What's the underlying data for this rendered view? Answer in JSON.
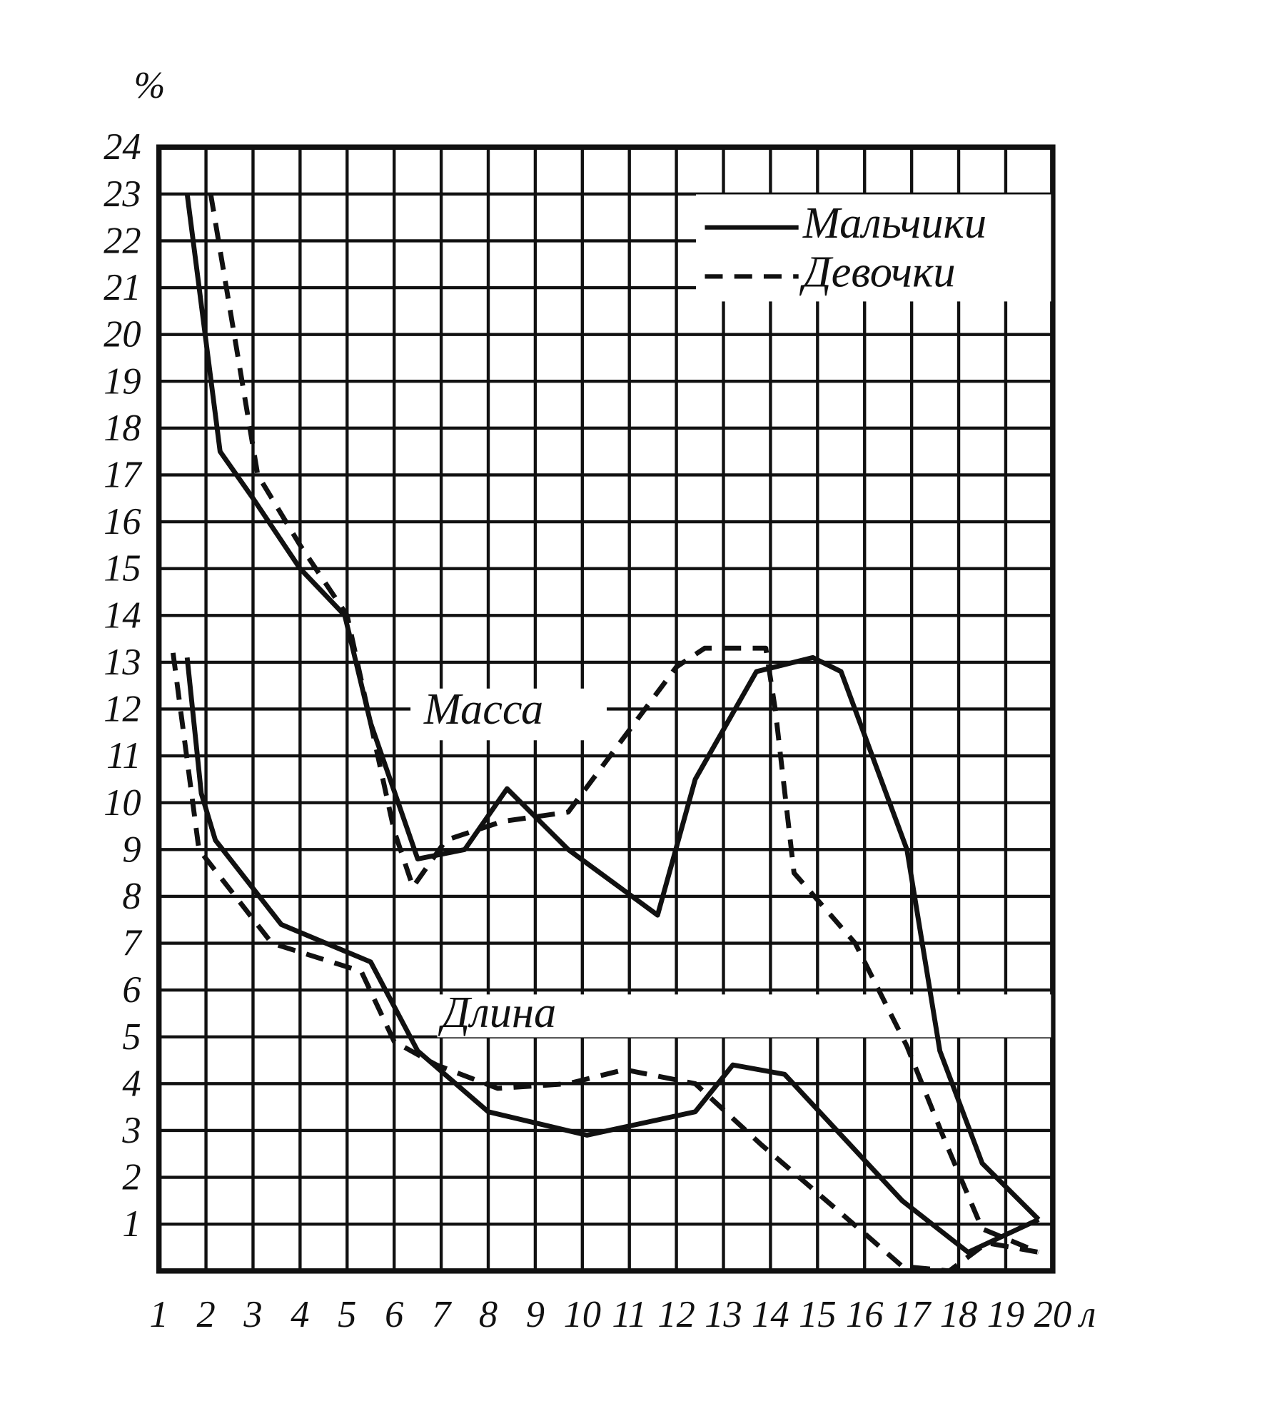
{
  "chart_data": {
    "type": "line",
    "y_unit": "%",
    "x_unit": "л",
    "xlim": [
      1,
      20
    ],
    "xticks": [
      1,
      2,
      3,
      4,
      5,
      6,
      7,
      8,
      9,
      10,
      11,
      12,
      13,
      14,
      15,
      16,
      17,
      18,
      19,
      20
    ],
    "ylim": [
      0,
      24
    ],
    "yticks": [
      1,
      2,
      3,
      4,
      5,
      6,
      7,
      8,
      9,
      10,
      11,
      12,
      13,
      14,
      15,
      16,
      17,
      18,
      19,
      20,
      21,
      22,
      23,
      24
    ],
    "grid": true,
    "legend_position": "upper right",
    "color": "#111111",
    "legend": [
      {
        "name": "Мальчики",
        "dash": "solid"
      },
      {
        "name": "Девочки",
        "dash": "dashed"
      }
    ],
    "groups": [
      {
        "label": "Масса",
        "series": [
          {
            "dash": "solid",
            "x": [
              1.6,
              2.3,
              3.0,
              4.0,
              4.95,
              5.5,
              6.5,
              7.5,
              8.4,
              9.7,
              11.6,
              12.4,
              13.7,
              14.9,
              15.5,
              16.9,
              17.6,
              18.5,
              19.7
            ],
            "values": [
              23,
              17.5,
              16.5,
              15,
              14,
              11.7,
              8.8,
              9,
              10.3,
              9,
              7.6,
              10.5,
              12.8,
              13.1,
              12.8,
              9,
              4.7,
              2.3,
              1.1
            ]
          },
          {
            "dash": "dashed",
            "x": [
              2.1,
              3.1,
              4.0,
              5.0,
              5.5,
              6.0,
              6.4,
              7.1,
              8.3,
              9.7,
              12.0,
              12.6,
              13.9,
              14.1,
              14.5,
              15.8,
              16.9,
              17.7,
              18.5,
              19.7
            ],
            "values": [
              23,
              17,
              15.5,
              14,
              11.7,
              9.4,
              8.2,
              9.2,
              9.6,
              9.8,
              12.9,
              13.3,
              13.3,
              12.0,
              8.5,
              7.0,
              4.8,
              2.8,
              0.9,
              0.4
            ]
          }
        ]
      },
      {
        "label": "Длина",
        "series": [
          {
            "dash": "solid",
            "x": [
              1.6,
              1.9,
              2.2,
              3.6,
              5.5,
              6.5,
              8.0,
              10.1,
              12.4,
              13.2,
              14.3,
              16.8,
              18.2,
              19.7
            ],
            "values": [
              13.1,
              10.2,
              9.2,
              7.4,
              6.6,
              4.7,
              3.4,
              2.9,
              3.4,
              4.4,
              4.2,
              1.5,
              0.4,
              1.1
            ]
          },
          {
            "dash": "dashed",
            "x": [
              1.3,
              1.85,
              3.4,
              5.3,
              6.0,
              6.9,
              8.2,
              9.7,
              10.9,
              12.4,
              13.8,
              16.0,
              16.8,
              17.8,
              18.6,
              19.7
            ],
            "values": [
              13.2,
              9.0,
              7.0,
              6.4,
              4.9,
              4.4,
              3.9,
              4.0,
              4.3,
              4.0,
              2.7,
              0.8,
              0.1,
              0,
              0.6,
              0.4
            ]
          }
        ]
      }
    ]
  }
}
